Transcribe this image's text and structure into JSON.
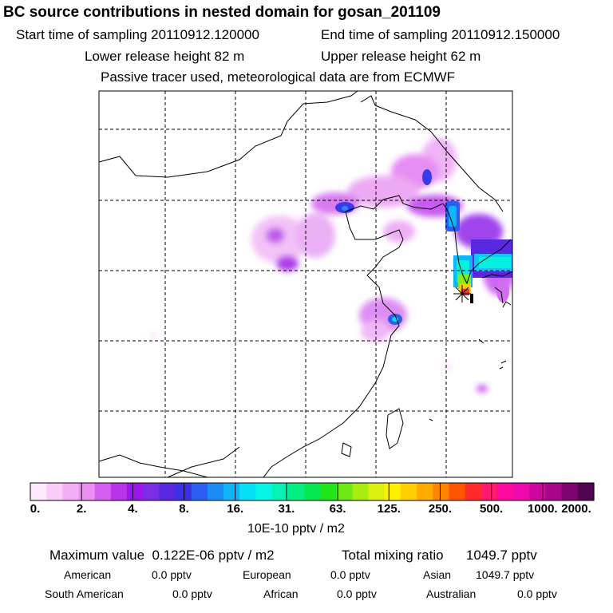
{
  "header": {
    "title": "BC  source contributions in nested domain for gosan_201109",
    "start_time": "Start time of sampling 20110912.120000",
    "end_time": "End time of sampling 20110912.150000",
    "lower_height": "Lower release height   82 m",
    "upper_height": "Upper release height   62 m",
    "tracer_note": "Passive tracer used, meteorological data are from ECMWF"
  },
  "chart_data": {
    "type": "heatmap",
    "title": "BC  source contributions in nested domain for gosan_201109",
    "colorbar": {
      "unit": "10E-10 pptv / m2",
      "tick_labels": [
        "0.",
        "2.",
        "4.",
        "8.",
        "16.",
        "31.",
        "63.",
        "125.",
        "250.",
        "500.",
        "1000.",
        "2000."
      ],
      "colors": [
        "#fde8fd",
        "#f9ccf9",
        "#f3aef6",
        "#ec8ff3",
        "#d45ff0",
        "#b734ec",
        "#9a16ea",
        "#7a2ce6",
        "#5a28e0",
        "#3b30e8",
        "#2a5ef0",
        "#1a8af4",
        "#10b4f8",
        "#08e0fa",
        "#06f5e6",
        "#06f2b4",
        "#06ee82",
        "#06e850",
        "#20e61a",
        "#6ee816",
        "#a8ec12",
        "#dcf010",
        "#fff000",
        "#ffcf00",
        "#ffab00",
        "#ff8500",
        "#ff5500",
        "#ff2a2a",
        "#ff1a70",
        "#ff0a9e",
        "#ee08b0",
        "#cc069e",
        "#a8058a",
        "#800470",
        "#520352"
      ]
    },
    "receptor": "gosan",
    "stats": {
      "max_label": "Maximum value",
      "max_value": "0.122E-06 pptv / m2",
      "total_label": "Total mixing ratio",
      "total_value": "1049.7 pptv"
    },
    "regions": [
      {
        "name": "American",
        "value": "0.0 pptv"
      },
      {
        "name": "European",
        "value": "0.0 pptv"
      },
      {
        "name": "Asian",
        "value": "1049.7 pptv"
      },
      {
        "name": "South American",
        "value": "0.0 pptv"
      },
      {
        "name": "African",
        "value": "0.0 pptv"
      },
      {
        "name": "Australian",
        "value": "0.0 pptv"
      }
    ]
  }
}
